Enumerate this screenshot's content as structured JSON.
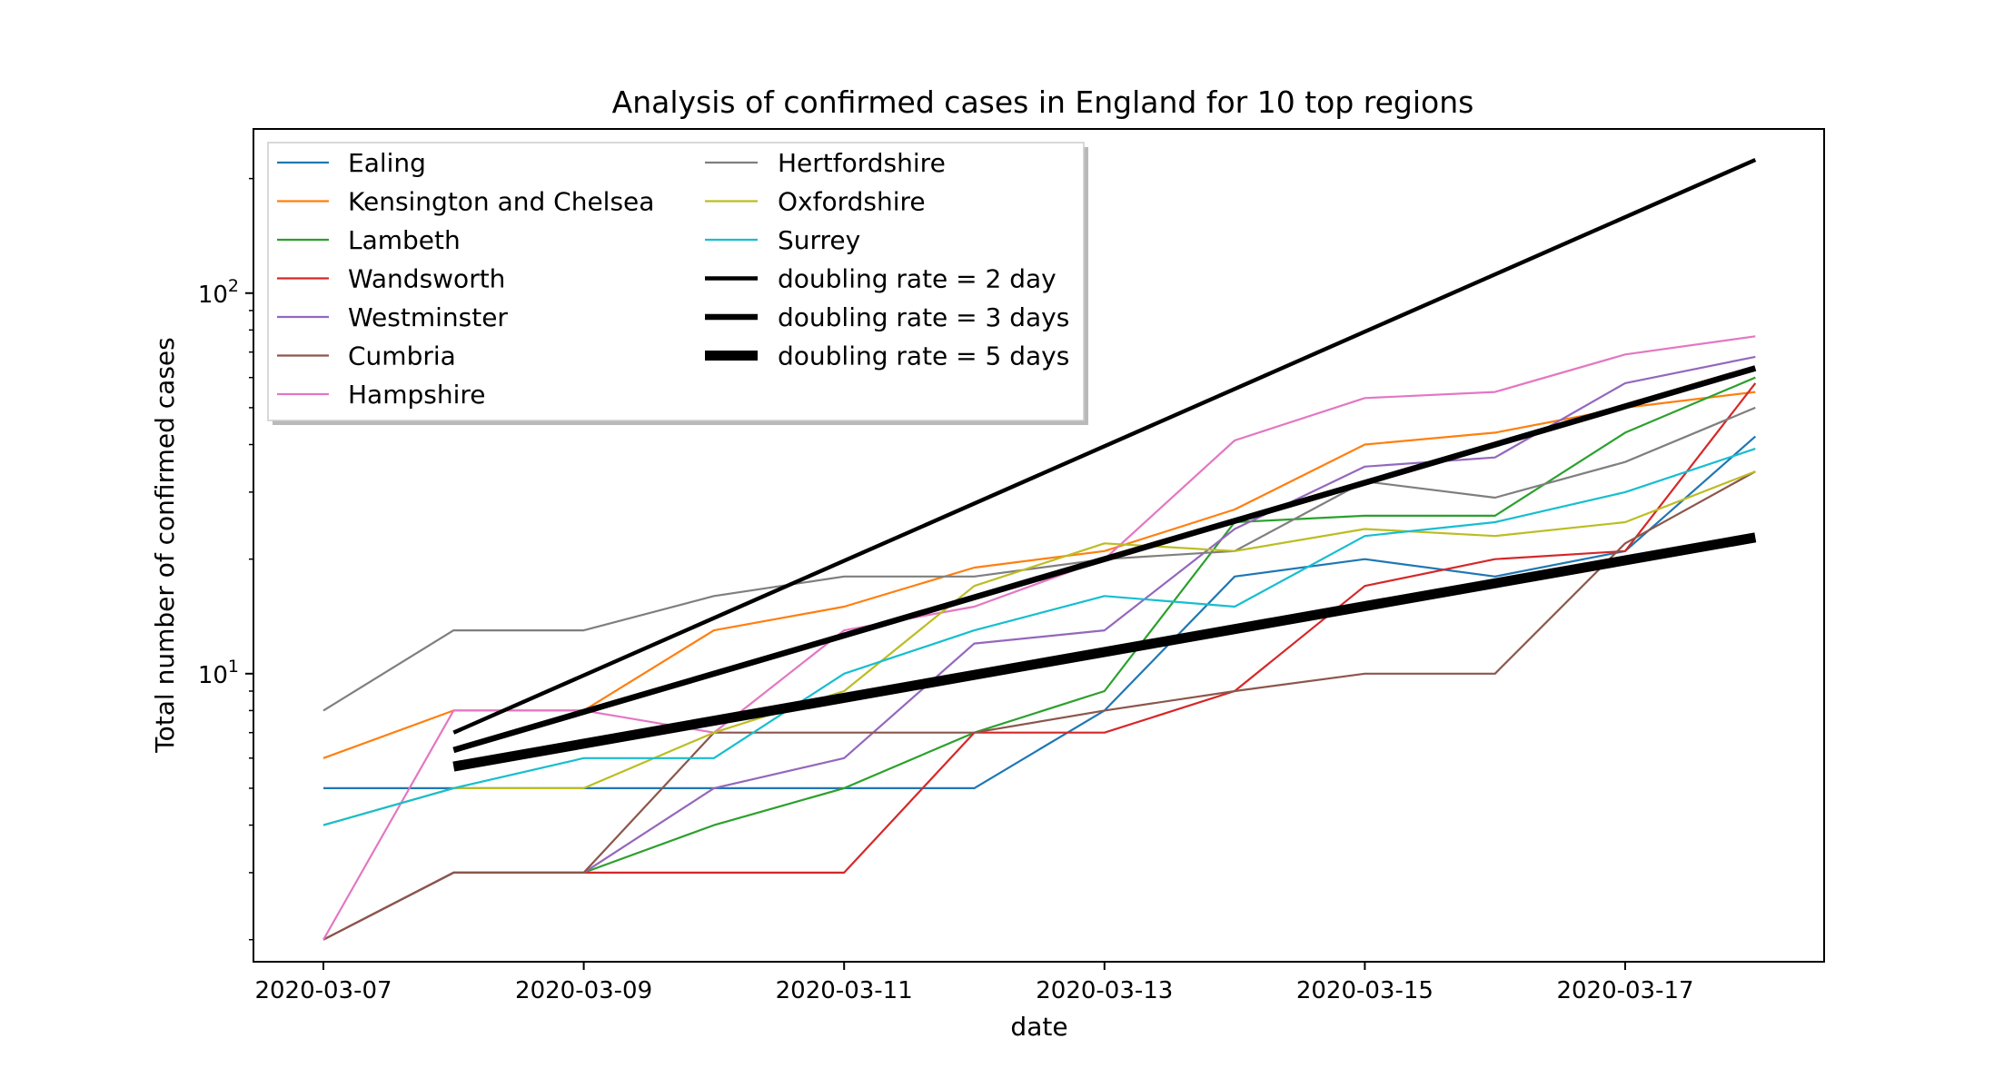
{
  "chart_data": {
    "type": "line",
    "title": "Analysis of confirmed cases in England for 10 top regions",
    "xlabel": "date",
    "ylabel": "Total number of confirmed cases",
    "yscale": "log",
    "ylim": [
      1.75,
      270
    ],
    "x": [
      "2020-03-07",
      "2020-03-08",
      "2020-03-09",
      "2020-03-10",
      "2020-03-11",
      "2020-03-12",
      "2020-03-13",
      "2020-03-14",
      "2020-03-15",
      "2020-03-16",
      "2020-03-17",
      "2020-03-18"
    ],
    "xticks": [
      "2020-03-07",
      "2020-03-09",
      "2020-03-11",
      "2020-03-13",
      "2020-03-15",
      "2020-03-17"
    ],
    "yticks": [
      {
        "value": 10,
        "base": "10",
        "exp": "1"
      },
      {
        "value": 100,
        "base": "10",
        "exp": "2"
      }
    ],
    "series": [
      {
        "name": "Ealing",
        "color": "#1f77b4",
        "width": 1,
        "values": [
          5,
          5,
          5,
          5,
          5,
          5,
          8,
          18,
          20,
          18,
          21,
          42
        ]
      },
      {
        "name": "Kensington and Chelsea",
        "color": "#ff7f0e",
        "width": 1,
        "values": [
          6,
          8,
          8,
          13,
          15,
          19,
          21,
          27,
          40,
          43,
          50,
          55
        ]
      },
      {
        "name": "Lambeth",
        "color": "#2ca02c",
        "width": 1,
        "values": [
          2,
          3,
          3,
          4,
          5,
          7,
          9,
          25,
          26,
          26,
          43,
          60
        ]
      },
      {
        "name": "Wandsworth",
        "color": "#d62728",
        "width": 1,
        "values": [
          2,
          3,
          3,
          3,
          3,
          7,
          7,
          9,
          17,
          20,
          21,
          58
        ]
      },
      {
        "name": "Westminster",
        "color": "#9467bd",
        "width": 1,
        "values": [
          2,
          3,
          3,
          5,
          6,
          12,
          13,
          24,
          35,
          37,
          58,
          68
        ]
      },
      {
        "name": "Cumbria",
        "color": "#8c564b",
        "width": 1,
        "values": [
          2,
          3,
          3,
          7,
          7,
          7,
          8,
          9,
          10,
          10,
          22,
          34
        ]
      },
      {
        "name": "Hampshire",
        "color": "#e377c2",
        "width": 1,
        "values": [
          2,
          8,
          8,
          7,
          13,
          15,
          20,
          41,
          53,
          55,
          69,
          77
        ]
      },
      {
        "name": "Hertfordshire",
        "color": "#7f7f7f",
        "width": 1,
        "values": [
          8,
          13,
          13,
          16,
          18,
          18,
          20,
          21,
          32,
          29,
          36,
          50
        ]
      },
      {
        "name": "Oxfordshire",
        "color": "#bcbd22",
        "width": 1,
        "values": [
          4,
          5,
          5,
          7,
          9,
          17,
          22,
          21,
          24,
          23,
          25,
          34
        ]
      },
      {
        "name": "Surrey",
        "color": "#17becf",
        "width": 1,
        "values": [
          4,
          5,
          6,
          6,
          10,
          13,
          16,
          15,
          23,
          25,
          30,
          39
        ]
      }
    ],
    "doubling_lines": [
      {
        "name": "doubling rate = 2 day",
        "color": "#000000",
        "width": 2,
        "start_x": "2020-03-08",
        "start_value": 7,
        "doubling_days": 2
      },
      {
        "name": "doubling rate = 3 days",
        "color": "#000000",
        "width": 3,
        "start_x": "2020-03-08",
        "start_value": 6.3,
        "doubling_days": 3
      },
      {
        "name": "doubling rate = 5 days",
        "color": "#000000",
        "width": 5,
        "start_x": "2020-03-08",
        "start_value": 5.7,
        "doubling_days": 5
      }
    ],
    "legend_position": "upper-left",
    "grid": false
  }
}
